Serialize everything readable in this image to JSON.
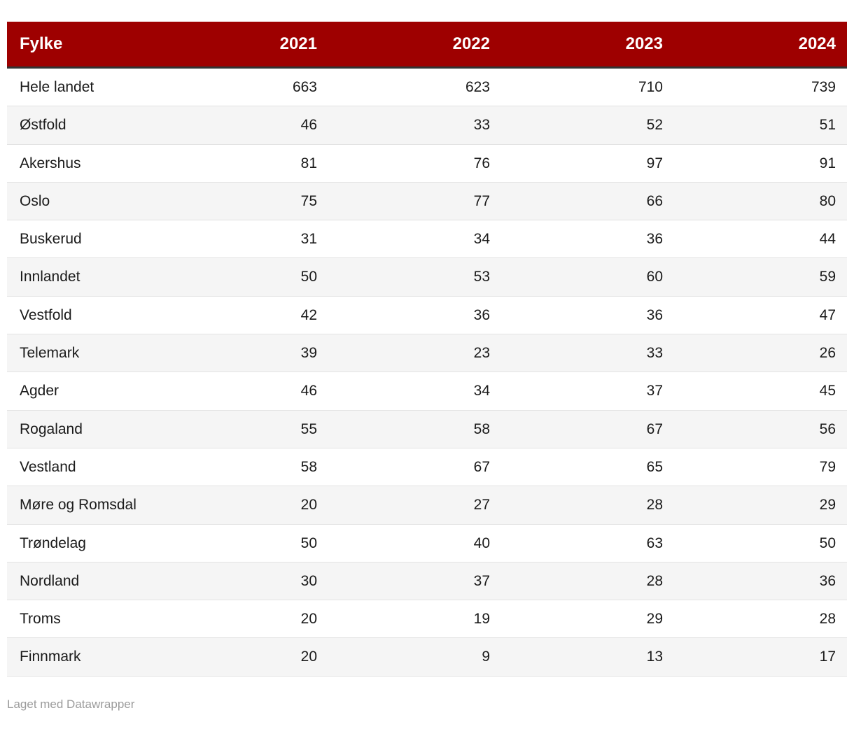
{
  "chart_data": {
    "type": "table",
    "columns": [
      "Fylke",
      "2021",
      "2022",
      "2023",
      "2024"
    ],
    "rows": [
      {
        "label": "Hele landet",
        "values": [
          "663",
          "623",
          "710",
          "739"
        ]
      },
      {
        "label": "Østfold",
        "values": [
          "46",
          "33",
          "52",
          "51"
        ]
      },
      {
        "label": "Akershus",
        "values": [
          "81",
          "76",
          "97",
          "91"
        ]
      },
      {
        "label": "Oslo",
        "values": [
          "75",
          "77",
          "66",
          "80"
        ]
      },
      {
        "label": "Buskerud",
        "values": [
          "31",
          "34",
          "36",
          "44"
        ]
      },
      {
        "label": "Innlandet",
        "values": [
          "50",
          "53",
          "60",
          "59"
        ]
      },
      {
        "label": "Vestfold",
        "values": [
          "42",
          "36",
          "36",
          "47"
        ]
      },
      {
        "label": "Telemark",
        "values": [
          "39",
          "23",
          "33",
          "26"
        ]
      },
      {
        "label": "Agder",
        "values": [
          "46",
          "34",
          "37",
          "45"
        ]
      },
      {
        "label": "Rogaland",
        "values": [
          "55",
          "58",
          "67",
          "56"
        ]
      },
      {
        "label": "Vestland",
        "values": [
          "58",
          "67",
          "65",
          "79"
        ]
      },
      {
        "label": "Møre og Romsdal",
        "values": [
          "20",
          "27",
          "28",
          "29"
        ]
      },
      {
        "label": "Trøndelag",
        "values": [
          "50",
          "40",
          "63",
          "50"
        ]
      },
      {
        "label": "Nordland",
        "values": [
          "30",
          "37",
          "28",
          "36"
        ]
      },
      {
        "label": "Troms",
        "values": [
          "20",
          "19",
          "29",
          "28"
        ]
      },
      {
        "label": "Finnmark",
        "values": [
          "20",
          "9",
          "13",
          "17"
        ]
      }
    ],
    "layout_hints": {
      "striped_rows": true,
      "first_column_align": "left",
      "value_columns_align": "right"
    }
  },
  "colors": {
    "header_bg": "#9e0000",
    "header_text": "#ffffff",
    "stripe": "#f5f5f5",
    "row_border": "#e2e2e2",
    "dark_border": "#333333",
    "body_text": "#1a1a1a",
    "footer_text": "#9b9b9b"
  },
  "footer": {
    "attribution": "Laget med Datawrapper"
  }
}
